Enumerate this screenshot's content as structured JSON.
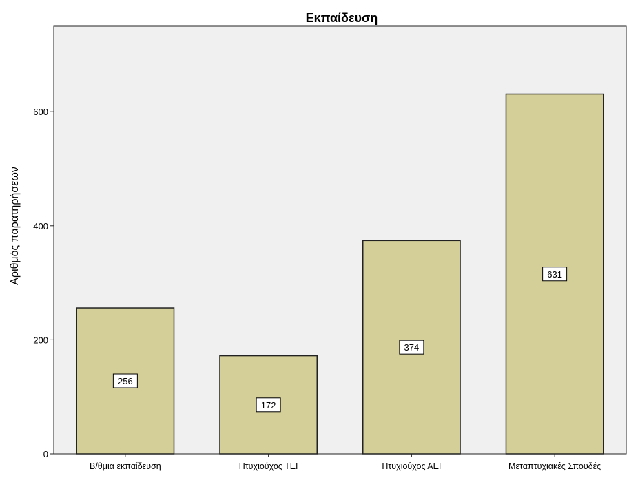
{
  "chart_data": {
    "type": "bar",
    "title": "Εκπαίδευση",
    "xlabel": "",
    "ylabel": "Αριθμός παρατηρήσεων",
    "categories": [
      "Β/θμια εκπαίδευση",
      "Πτυχιούχος ΤΕΙ",
      "Πτυχιούχος ΑΕΙ",
      "Μεταπτυχιακές Σπουδές"
    ],
    "values": [
      256,
      172,
      374,
      631
    ],
    "data_labels": [
      "256",
      "172",
      "374",
      "631"
    ],
    "ylim": [
      0,
      750
    ],
    "yticks": [
      0,
      200,
      400,
      600
    ],
    "ytick_labels": [
      "0",
      "200",
      "400",
      "600"
    ],
    "grid": false,
    "legend": "none",
    "colors": {
      "bar_fill": "#d4cf99",
      "bar_stroke": "#222222",
      "plot_background": "#f0f0f0"
    }
  }
}
